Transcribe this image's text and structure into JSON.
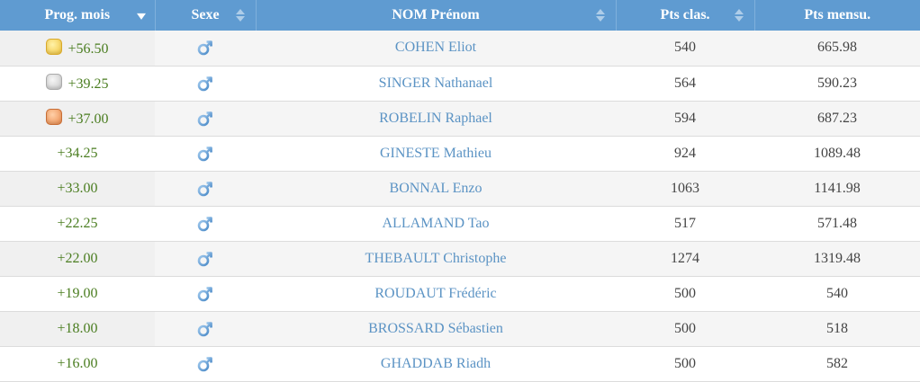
{
  "columns": [
    {
      "label": "Prog. mois",
      "sort": "desc-active"
    },
    {
      "label": "Sexe",
      "sort": "both"
    },
    {
      "label": "NOM Prénom",
      "sort": "both"
    },
    {
      "label": "Pts clas.",
      "sort": "both"
    },
    {
      "label": "Pts mensu.",
      "sort": "none"
    }
  ],
  "rows": [
    {
      "prog": "+56.50",
      "medal": "gold",
      "sexe": "male-icon",
      "name": "COHEN Eliot",
      "pts_clas": "540",
      "pts_mensu": "665.98"
    },
    {
      "prog": "+39.25",
      "medal": "silver",
      "sexe": "male-icon",
      "name": "SINGER Nathanael",
      "pts_clas": "564",
      "pts_mensu": "590.23"
    },
    {
      "prog": "+37.00",
      "medal": "bronze",
      "sexe": "male-icon",
      "name": "ROBELIN Raphael",
      "pts_clas": "594",
      "pts_mensu": "687.23"
    },
    {
      "prog": "+34.25",
      "medal": "",
      "sexe": "male-icon",
      "name": "GINESTE Mathieu",
      "pts_clas": "924",
      "pts_mensu": "1089.48"
    },
    {
      "prog": "+33.00",
      "medal": "",
      "sexe": "male-icon",
      "name": "BONNAL Enzo",
      "pts_clas": "1063",
      "pts_mensu": "1141.98"
    },
    {
      "prog": "+22.25",
      "medal": "",
      "sexe": "male-icon",
      "name": "ALLAMAND Tao",
      "pts_clas": "517",
      "pts_mensu": "571.48"
    },
    {
      "prog": "+22.00",
      "medal": "",
      "sexe": "male-icon",
      "name": "THEBAULT Christophe",
      "pts_clas": "1274",
      "pts_mensu": "1319.48"
    },
    {
      "prog": "+19.00",
      "medal": "",
      "sexe": "male-icon",
      "name": "ROUDAUT Frédéric",
      "pts_clas": "500",
      "pts_mensu": "540"
    },
    {
      "prog": "+18.00",
      "medal": "",
      "sexe": "male-icon",
      "name": "BROSSARD Sébastien",
      "pts_clas": "500",
      "pts_mensu": "518"
    },
    {
      "prog": "+16.00",
      "medal": "",
      "sexe": "male-icon",
      "name": "GHADDAB Riadh",
      "pts_clas": "500",
      "pts_mensu": "582"
    }
  ],
  "colors": {
    "header_bg": "#5f9bd1",
    "name_link": "#5b93c4",
    "prog_positive": "#4a7d20"
  }
}
